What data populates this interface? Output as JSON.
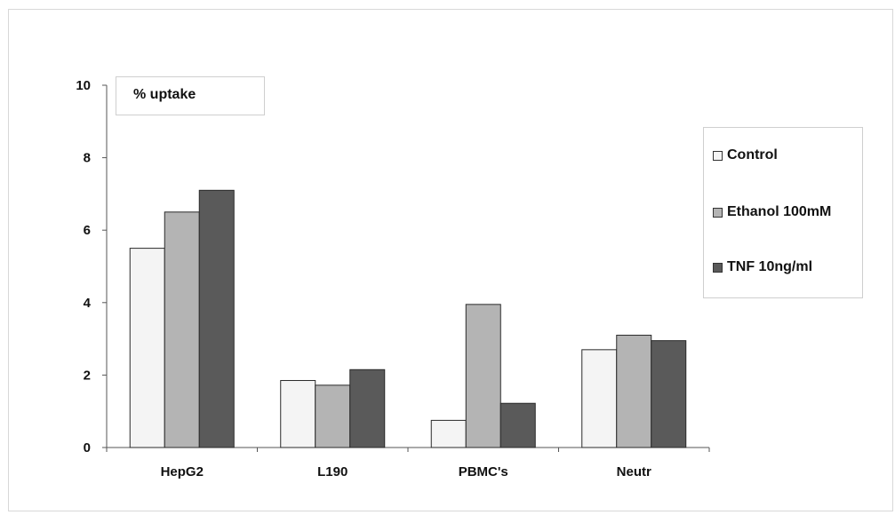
{
  "chart_data": {
    "type": "bar",
    "title": "",
    "xlabel": "",
    "ylabel": "% uptake",
    "ylim": [
      0,
      10
    ],
    "yticks": [
      0,
      2,
      4,
      6,
      8,
      10
    ],
    "grid": false,
    "legend_position": "right",
    "categories": [
      "HepG2",
      "L190",
      "PBMC's",
      "Neutr"
    ],
    "series": [
      {
        "name": "Control",
        "values": [
          5.5,
          1.85,
          0.75,
          2.7
        ],
        "color": "#f4f4f4"
      },
      {
        "name": "Ethanol 100mM",
        "values": [
          6.5,
          1.72,
          3.95,
          3.1
        ],
        "color": "#b4b4b4"
      },
      {
        "name": "TNF 10ng/ml",
        "values": [
          7.1,
          2.15,
          1.22,
          2.95
        ],
        "color": "#5a5a5a"
      }
    ]
  }
}
